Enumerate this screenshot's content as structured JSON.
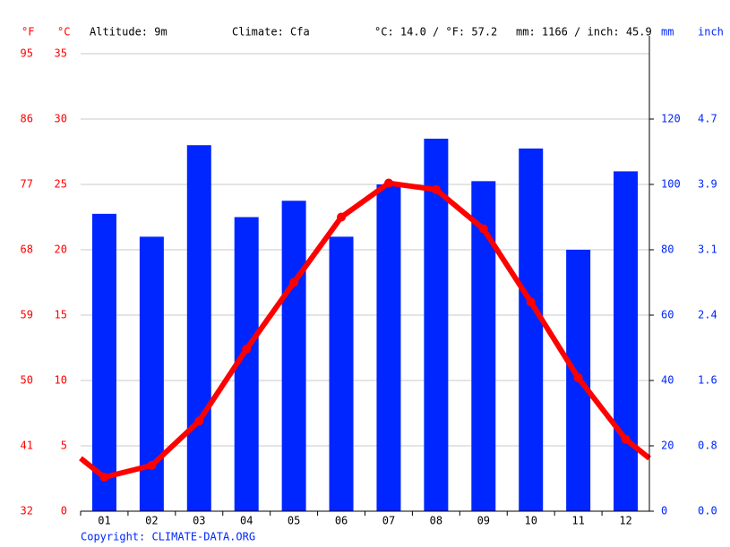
{
  "chart_data": {
    "type": "bar",
    "header": {
      "f_unit": "°F",
      "c_unit": "°C",
      "altitude": "Altitude: 9m",
      "climate": "Climate: Cfa",
      "temp_mean": "°C: 14.0 / °F: 57.2",
      "precip_total": "mm: 1166 / inch: 45.9",
      "mm_unit": "mm",
      "inch_unit": "inch"
    },
    "copyright": "Copyright: CLIMATE-DATA.ORG",
    "categories": [
      "01",
      "02",
      "03",
      "04",
      "05",
      "06",
      "07",
      "08",
      "09",
      "10",
      "11",
      "12"
    ],
    "series": [
      {
        "color": "#0026ff",
        "axis": "y2",
        "values": [
          91,
          84,
          112,
          90,
          95,
          84,
          100,
          114,
          101,
          111,
          80,
          104
        ]
      },
      {
        "type": "line",
        "color": "#ff0000",
        "values": [
          2.6,
          3.5,
          6.9,
          12.4,
          17.5,
          22.5,
          25.1,
          24.6,
          21.6,
          16.0,
          10.2,
          5.5
        ]
      }
    ],
    "ylim": [
      0,
      35
    ],
    "yticks": [
      0,
      5,
      10,
      15,
      20,
      25,
      30,
      35
    ],
    "flim": [
      32,
      95
    ],
    "fticks": [
      32,
      41,
      50,
      59,
      68,
      77,
      86,
      95
    ],
    "y2lim": [
      0,
      140
    ],
    "y2ticks": [
      0,
      20,
      40,
      60,
      80,
      100,
      120
    ],
    "inchlim": [
      0,
      5.5118
    ],
    "inchticks": [
      {
        "value": 0,
        "label": "0.0"
      },
      {
        "value": 0.7874,
        "label": "0.8"
      },
      {
        "value": 1.5748,
        "label": "1.6"
      },
      {
        "value": 2.3622,
        "label": "2.4"
      },
      {
        "value": 3.1496,
        "label": "3.1"
      },
      {
        "value": 3.937,
        "label": "3.9"
      },
      {
        "value": 4.7244,
        "label": "4.7"
      }
    ],
    "grid": true,
    "temp_color": "#ff0000",
    "precip_color": "#0026ff"
  }
}
